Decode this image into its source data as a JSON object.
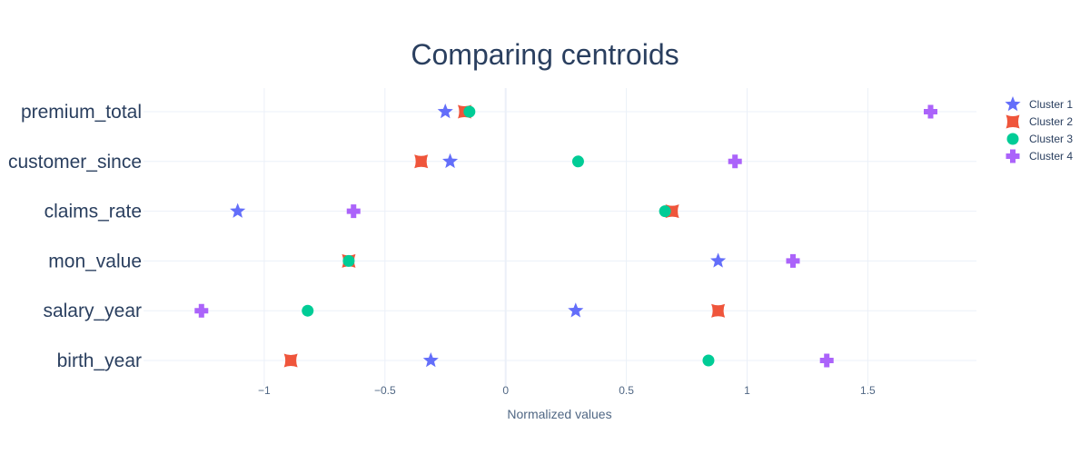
{
  "chart_data": {
    "type": "scatter",
    "title": "Comparing centroids",
    "xlabel": "Normalized values",
    "ylabel": "",
    "xlim": [
      -1.5,
      1.95
    ],
    "xticks": [
      -1,
      -0.5,
      0,
      0.5,
      1,
      1.5
    ],
    "xtick_labels": [
      "−1",
      "−0.5",
      "0",
      "0.5",
      "1",
      "1.5"
    ],
    "categories": [
      "premium_total",
      "customer_since",
      "claims_rate",
      "mon_value",
      "salary_year",
      "birth_year"
    ],
    "grid": true,
    "legend_position": "top-right",
    "series": [
      {
        "name": "Cluster 1",
        "symbol": "star",
        "color": "#636efa",
        "values": [
          -0.25,
          -0.23,
          -1.11,
          0.88,
          0.29,
          -0.31
        ]
      },
      {
        "name": "Cluster 2",
        "symbol": "bowtie",
        "color": "#ef553b",
        "values": [
          -0.17,
          -0.35,
          0.69,
          -0.65,
          0.88,
          -0.89
        ]
      },
      {
        "name": "Cluster 3",
        "symbol": "circle",
        "color": "#00cc96",
        "values": [
          -0.15,
          0.3,
          0.66,
          -0.65,
          -0.82,
          0.84
        ]
      },
      {
        "name": "Cluster 4",
        "symbol": "cross",
        "color": "#ab63fa",
        "values": [
          1.76,
          0.95,
          -0.63,
          1.19,
          -1.26,
          1.33
        ]
      }
    ]
  }
}
